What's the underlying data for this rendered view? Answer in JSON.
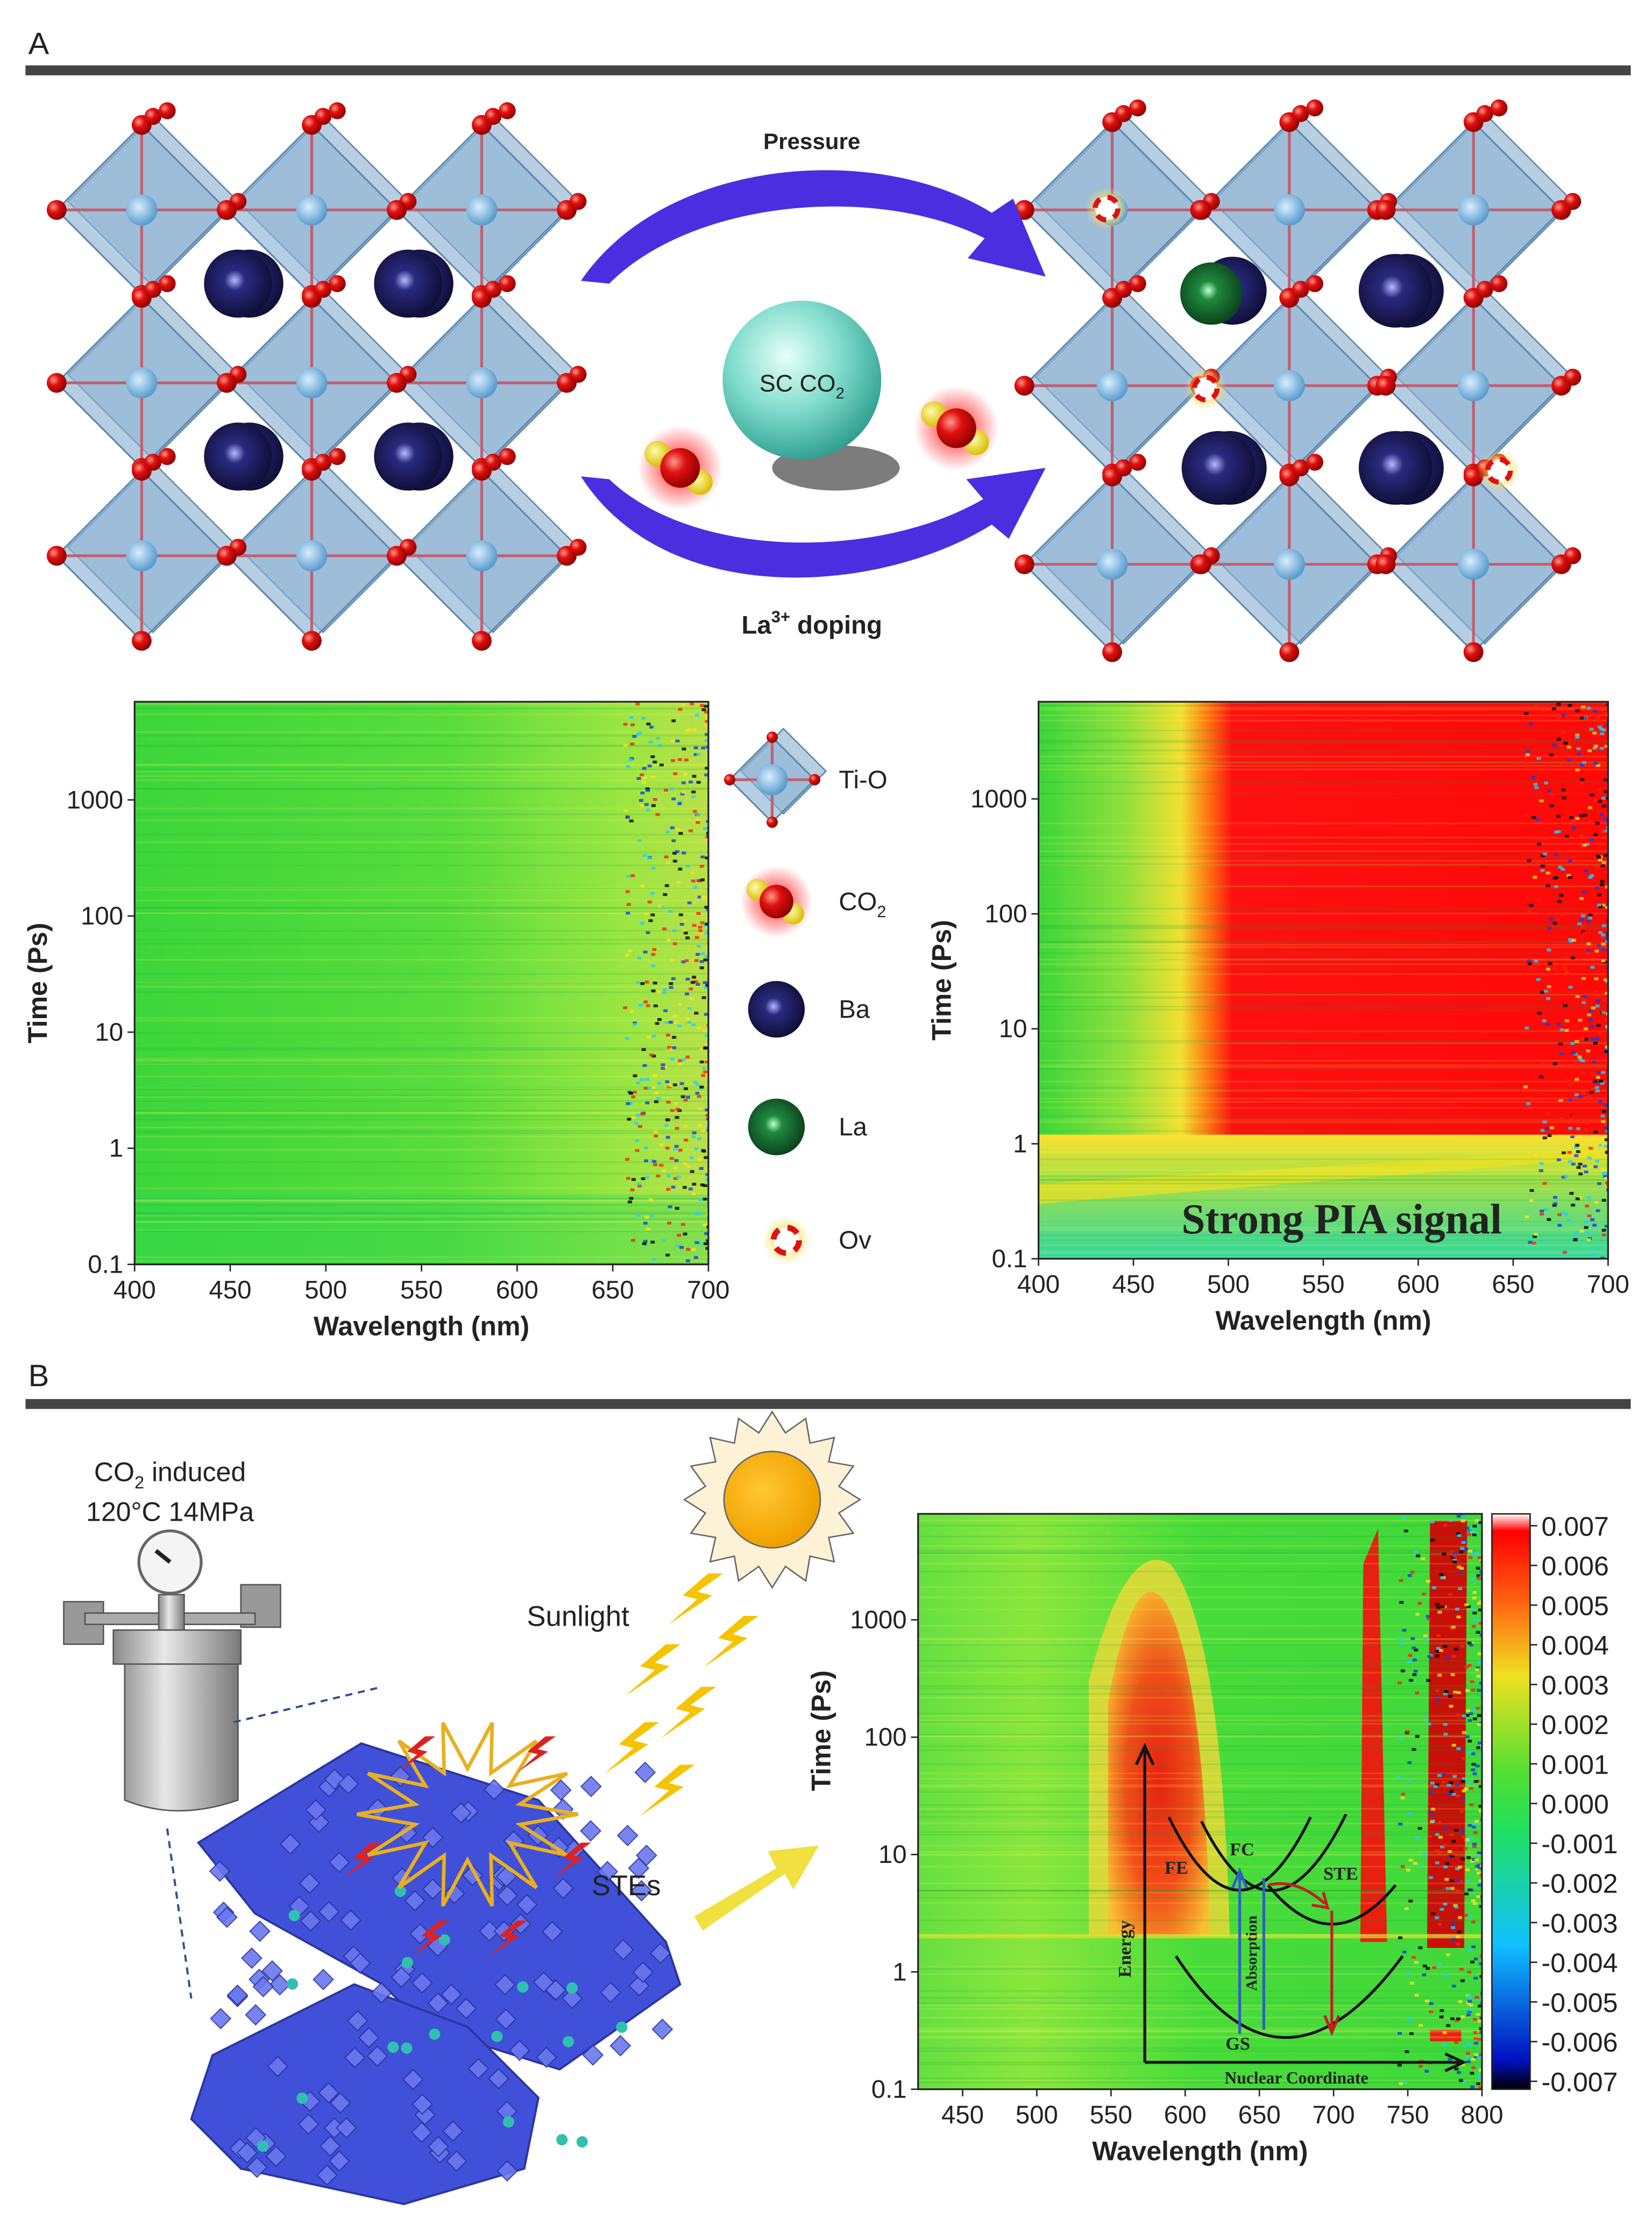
{
  "figure": {
    "panels": [
      "A",
      "B"
    ],
    "panel_a": {
      "arrow_top": "Pressure",
      "sphere": {
        "text": "SC CO",
        "sub": "2"
      },
      "arrow_bottom": {
        "text": "La",
        "sup": "3+",
        "rest": " doping"
      },
      "legend": [
        {
          "text": "Ti-O"
        },
        {
          "text": "CO",
          "sub": "2"
        },
        {
          "text": "Ba"
        },
        {
          "text": "La"
        },
        {
          "text": "Ov"
        }
      ]
    },
    "panel_b": {
      "reactor": [
        {
          "text": "CO",
          "sub": "2",
          "rest": " induced"
        },
        {
          "text": "120°C 14MPa"
        }
      ],
      "sunlight": "Sunlight",
      "stes": "STEs"
    }
  },
  "chart_data": [
    {
      "type": "heatmap",
      "xlabel": "Wavelength (nm)",
      "ylabel": "Time (Ps)",
      "xlim": [
        400,
        700
      ],
      "xticks": [
        400,
        450,
        500,
        550,
        600,
        650,
        700
      ],
      "ylim": [
        0.1,
        7000
      ],
      "yticks": [
        0.1,
        1,
        10,
        100,
        1000
      ],
      "yscale": "log"
    },
    {
      "type": "heatmap",
      "xlabel": "Wavelength (nm)",
      "ylabel": "Time (Ps)",
      "xlim": [
        400,
        700
      ],
      "xticks": [
        400,
        450,
        500,
        550,
        600,
        650,
        700
      ],
      "ylim": [
        0.1,
        7000
      ],
      "yticks": [
        0.1,
        1,
        10,
        100,
        1000
      ],
      "yscale": "log",
      "annotation": "Strong PIA signal"
    },
    {
      "type": "heatmap",
      "xlabel": "Wavelength (nm)",
      "ylabel": "Time (Ps)",
      "xlim": [
        420,
        800
      ],
      "xticks": [
        450,
        500,
        550,
        600,
        650,
        700,
        750,
        800
      ],
      "ylim": [
        0.1,
        8000
      ],
      "yticks": [
        0.1,
        1,
        10,
        100,
        1000
      ],
      "yscale": "log",
      "colorbar": {
        "lim": [
          -0.0072,
          0.0073
        ],
        "ticks": [
          0.007,
          0.006,
          0.005,
          0.004,
          0.003,
          0.002,
          0.001,
          {
            "value": 0,
            "label": "0.000"
          },
          -0.001,
          -0.002,
          -0.003,
          -0.004,
          -0.005,
          -0.006,
          -0.007
        ]
      },
      "annotations": [
        "FE",
        "FC",
        "STE",
        "GS",
        "Energy",
        "Absorption",
        "Nuclear Coordinate"
      ]
    }
  ]
}
